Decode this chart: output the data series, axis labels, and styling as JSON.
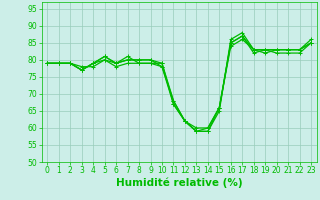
{
  "xlabel": "Humidité relative (%)",
  "xlim": [
    -0.5,
    23.5
  ],
  "ylim": [
    50,
    97
  ],
  "yticks": [
    50,
    55,
    60,
    65,
    70,
    75,
    80,
    85,
    90,
    95
  ],
  "xticks": [
    0,
    1,
    2,
    3,
    4,
    5,
    6,
    7,
    8,
    9,
    10,
    11,
    12,
    13,
    14,
    15,
    16,
    17,
    18,
    19,
    20,
    21,
    22,
    23
  ],
  "bg_color": "#cceee8",
  "grid_color": "#99ccbb",
  "line_color": "#00bb00",
  "lines": [
    [
      79,
      79,
      79,
      77,
      79,
      81,
      79,
      81,
      79,
      79,
      78,
      67,
      62,
      59,
      59,
      65,
      86,
      88,
      83,
      83,
      83,
      83,
      83,
      86
    ],
    [
      79,
      79,
      79,
      78,
      78,
      80,
      78,
      79,
      79,
      79,
      79,
      67,
      62,
      59,
      59,
      66,
      85,
      87,
      82,
      83,
      82,
      82,
      82,
      85
    ],
    [
      79,
      79,
      79,
      77,
      79,
      81,
      79,
      80,
      80,
      80,
      79,
      68,
      62,
      60,
      60,
      66,
      85,
      87,
      83,
      83,
      83,
      83,
      83,
      85
    ],
    [
      79,
      79,
      79,
      77,
      79,
      80,
      79,
      80,
      80,
      80,
      78,
      68,
      62,
      59,
      60,
      66,
      84,
      86,
      83,
      82,
      83,
      83,
      83,
      85
    ]
  ],
  "marker": "+",
  "markersize": 3,
  "linewidth": 0.9,
  "tick_fontsize": 5.5,
  "xlabel_fontsize": 7.5
}
